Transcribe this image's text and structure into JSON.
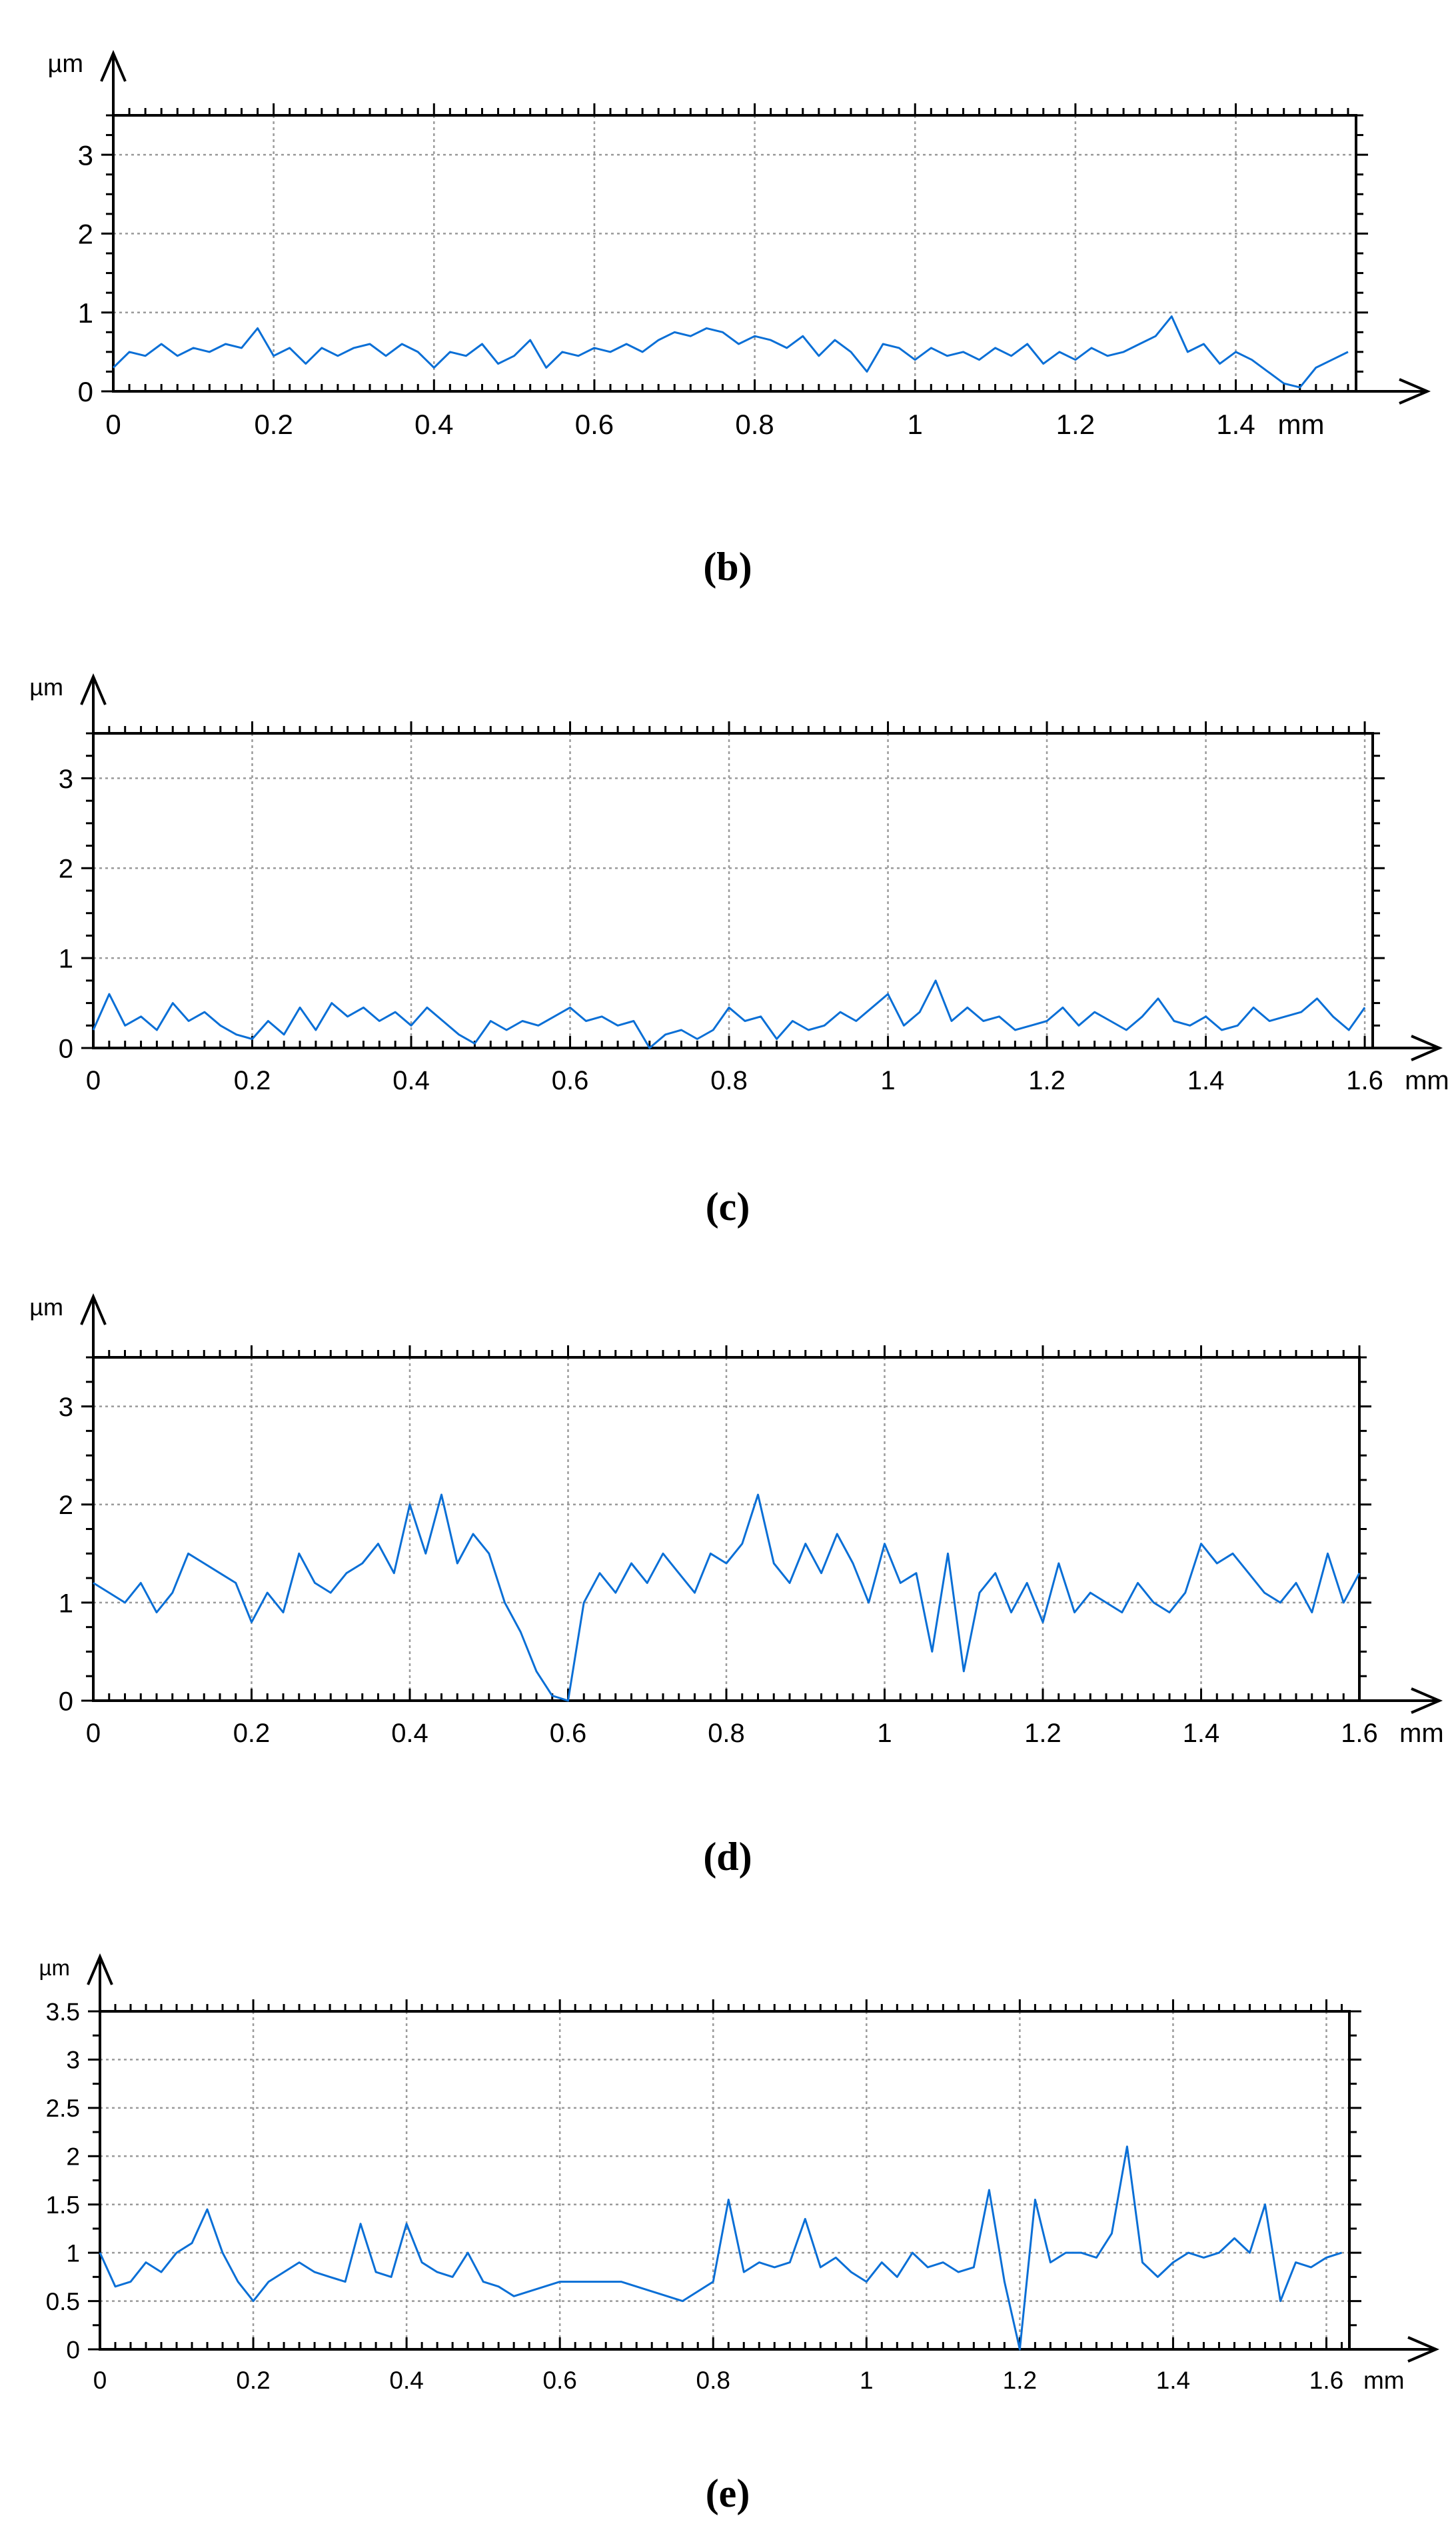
{
  "colors": {
    "line": "#0a6fd6",
    "grid": "#9a9a9a",
    "axis": "#000000"
  },
  "chart_data": [
    {
      "type": "line",
      "caption": "(b)",
      "y_unit": "µm",
      "x_unit": "mm",
      "xlim": [
        0,
        1.55
      ],
      "ylim": [
        0,
        3.5
      ],
      "x_ticks": [
        0,
        0.2,
        0.4,
        0.6,
        0.8,
        1,
        1.2,
        1.4
      ],
      "x_tick_labels": [
        "0",
        "0.2",
        "0.4",
        "0.6",
        "0.8",
        "1",
        "1.2",
        "1.4"
      ],
      "y_ticks": [
        0,
        1,
        2,
        3
      ],
      "y_tick_labels": [
        "0",
        "1",
        "2",
        "3"
      ],
      "grid": true,
      "series": [
        {
          "x": [
            0,
            0.02,
            0.04,
            0.06,
            0.08,
            0.1,
            0.12,
            0.14,
            0.16,
            0.18,
            0.2,
            0.22,
            0.24,
            0.26,
            0.28,
            0.3,
            0.32,
            0.34,
            0.36,
            0.38,
            0.4,
            0.42,
            0.44,
            0.46,
            0.48,
            0.5,
            0.52,
            0.54,
            0.56,
            0.58,
            0.6,
            0.62,
            0.64,
            0.66,
            0.68,
            0.7,
            0.72,
            0.74,
            0.76,
            0.78,
            0.8,
            0.82,
            0.84,
            0.86,
            0.88,
            0.9,
            0.92,
            0.94,
            0.96,
            0.98,
            1.0,
            1.02,
            1.04,
            1.06,
            1.08,
            1.1,
            1.12,
            1.14,
            1.16,
            1.18,
            1.2,
            1.22,
            1.24,
            1.26,
            1.28,
            1.3,
            1.32,
            1.34,
            1.36,
            1.38,
            1.4,
            1.42,
            1.44,
            1.46,
            1.48,
            1.5,
            1.52,
            1.54
          ],
          "y": [
            0.3,
            0.5,
            0.45,
            0.6,
            0.45,
            0.55,
            0.5,
            0.6,
            0.55,
            0.8,
            0.45,
            0.55,
            0.35,
            0.55,
            0.45,
            0.55,
            0.6,
            0.45,
            0.6,
            0.5,
            0.3,
            0.5,
            0.45,
            0.6,
            0.35,
            0.45,
            0.65,
            0.3,
            0.5,
            0.45,
            0.55,
            0.5,
            0.6,
            0.5,
            0.65,
            0.75,
            0.7,
            0.8,
            0.75,
            0.6,
            0.7,
            0.65,
            0.55,
            0.7,
            0.45,
            0.65,
            0.5,
            0.25,
            0.6,
            0.55,
            0.4,
            0.55,
            0.45,
            0.5,
            0.4,
            0.55,
            0.45,
            0.6,
            0.35,
            0.5,
            0.4,
            0.55,
            0.45,
            0.5,
            0.6,
            0.7,
            0.95,
            0.5,
            0.6,
            0.35,
            0.5,
            0.4,
            0.25,
            0.1,
            0.05,
            0.3,
            0.4,
            0.5
          ]
        }
      ]
    },
    {
      "type": "line",
      "caption": "(c)",
      "y_unit": "µm",
      "x_unit": "mm",
      "xlim": [
        0,
        1.61
      ],
      "ylim": [
        0,
        3.5
      ],
      "x_ticks": [
        0,
        0.2,
        0.4,
        0.6,
        0.8,
        1,
        1.2,
        1.4,
        1.6
      ],
      "x_tick_labels": [
        "0",
        "0.2",
        "0.4",
        "0.6",
        "0.8",
        "1",
        "1.2",
        "1.4",
        "1.6"
      ],
      "y_ticks": [
        0,
        1,
        2,
        3
      ],
      "y_tick_labels": [
        "0",
        "1",
        "2",
        "3"
      ],
      "grid": true,
      "series": [
        {
          "x": [
            0,
            0.02,
            0.04,
            0.06,
            0.08,
            0.1,
            0.12,
            0.14,
            0.16,
            0.18,
            0.2,
            0.22,
            0.24,
            0.26,
            0.28,
            0.3,
            0.32,
            0.34,
            0.36,
            0.38,
            0.4,
            0.42,
            0.44,
            0.46,
            0.48,
            0.5,
            0.52,
            0.54,
            0.56,
            0.58,
            0.6,
            0.62,
            0.64,
            0.66,
            0.68,
            0.7,
            0.72,
            0.74,
            0.76,
            0.78,
            0.8,
            0.82,
            0.84,
            0.86,
            0.88,
            0.9,
            0.92,
            0.94,
            0.96,
            0.98,
            1.0,
            1.02,
            1.04,
            1.06,
            1.08,
            1.1,
            1.12,
            1.14,
            1.16,
            1.18,
            1.2,
            1.22,
            1.24,
            1.26,
            1.28,
            1.3,
            1.32,
            1.34,
            1.36,
            1.38,
            1.4,
            1.42,
            1.44,
            1.46,
            1.48,
            1.5,
            1.52,
            1.54,
            1.56,
            1.58,
            1.6
          ],
          "y": [
            0.2,
            0.6,
            0.25,
            0.35,
            0.2,
            0.5,
            0.3,
            0.4,
            0.25,
            0.15,
            0.1,
            0.3,
            0.15,
            0.45,
            0.2,
            0.5,
            0.35,
            0.45,
            0.3,
            0.4,
            0.25,
            0.45,
            0.3,
            0.15,
            0.05,
            0.3,
            0.2,
            0.3,
            0.25,
            0.35,
            0.45,
            0.3,
            0.35,
            0.25,
            0.3,
            0.0,
            0.15,
            0.2,
            0.1,
            0.2,
            0.45,
            0.3,
            0.35,
            0.1,
            0.3,
            0.2,
            0.25,
            0.4,
            0.3,
            0.45,
            0.6,
            0.25,
            0.4,
            0.75,
            0.3,
            0.45,
            0.3,
            0.35,
            0.2,
            0.25,
            0.3,
            0.45,
            0.25,
            0.4,
            0.3,
            0.2,
            0.35,
            0.55,
            0.3,
            0.25,
            0.35,
            0.2,
            0.25,
            0.45,
            0.3,
            0.35,
            0.4,
            0.55,
            0.35,
            0.2,
            0.45
          ]
        }
      ]
    },
    {
      "type": "line",
      "caption": "(d)",
      "y_unit": "µm",
      "x_unit": "mm",
      "xlim": [
        0,
        1.6
      ],
      "ylim": [
        0,
        3.5
      ],
      "x_ticks": [
        0,
        0.2,
        0.4,
        0.6,
        0.8,
        1,
        1.2,
        1.4,
        1.6
      ],
      "x_tick_labels": [
        "0",
        "0.2",
        "0.4",
        "0.6",
        "0.8",
        "1",
        "1.2",
        "1.4",
        "1.6"
      ],
      "y_ticks": [
        0,
        1,
        2,
        3
      ],
      "y_tick_labels": [
        "0",
        "1",
        "2",
        "3"
      ],
      "grid": true,
      "series": [
        {
          "x": [
            0,
            0.02,
            0.04,
            0.06,
            0.08,
            0.1,
            0.12,
            0.14,
            0.16,
            0.18,
            0.2,
            0.22,
            0.24,
            0.26,
            0.28,
            0.3,
            0.32,
            0.34,
            0.36,
            0.38,
            0.4,
            0.42,
            0.44,
            0.46,
            0.48,
            0.5,
            0.52,
            0.54,
            0.56,
            0.58,
            0.6,
            0.62,
            0.64,
            0.66,
            0.68,
            0.7,
            0.72,
            0.74,
            0.76,
            0.78,
            0.8,
            0.82,
            0.84,
            0.86,
            0.88,
            0.9,
            0.92,
            0.94,
            0.96,
            0.98,
            1.0,
            1.02,
            1.04,
            1.06,
            1.08,
            1.1,
            1.12,
            1.14,
            1.16,
            1.18,
            1.2,
            1.22,
            1.24,
            1.26,
            1.28,
            1.3,
            1.32,
            1.34,
            1.36,
            1.38,
            1.4,
            1.42,
            1.44,
            1.46,
            1.48,
            1.5,
            1.52,
            1.54,
            1.56,
            1.58,
            1.6
          ],
          "y": [
            1.2,
            1.1,
            1.0,
            1.2,
            0.9,
            1.1,
            1.5,
            1.4,
            1.3,
            1.2,
            0.8,
            1.1,
            0.9,
            1.5,
            1.2,
            1.1,
            1.3,
            1.4,
            1.6,
            1.3,
            2.0,
            1.5,
            2.1,
            1.4,
            1.7,
            1.5,
            1.0,
            0.7,
            0.3,
            0.05,
            0.0,
            1.0,
            1.3,
            1.1,
            1.4,
            1.2,
            1.5,
            1.3,
            1.1,
            1.5,
            1.4,
            1.6,
            2.1,
            1.4,
            1.2,
            1.6,
            1.3,
            1.7,
            1.4,
            1.0,
            1.6,
            1.2,
            1.3,
            0.5,
            1.5,
            0.3,
            1.1,
            1.3,
            0.9,
            1.2,
            0.8,
            1.4,
            0.9,
            1.1,
            1.0,
            0.9,
            1.2,
            1.0,
            0.9,
            1.1,
            1.6,
            1.4,
            1.5,
            1.3,
            1.1,
            1.0,
            1.2,
            0.9,
            1.5,
            1.0,
            1.3
          ]
        }
      ]
    },
    {
      "type": "line",
      "caption": "(e)",
      "y_unit": "µm",
      "x_unit": "mm",
      "xlim": [
        0,
        1.63
      ],
      "ylim": [
        0,
        3.5
      ],
      "x_ticks": [
        0,
        0.2,
        0.4,
        0.6,
        0.8,
        1,
        1.2,
        1.4,
        1.6
      ],
      "x_tick_labels": [
        "0",
        "0.2",
        "0.4",
        "0.6",
        "0.8",
        "1",
        "1.2",
        "1.4",
        "1.6"
      ],
      "y_ticks": [
        0,
        0.5,
        1,
        1.5,
        2,
        2.5,
        3,
        3.5
      ],
      "y_tick_labels": [
        "0",
        "0.5",
        "1",
        "1.5",
        "2",
        "2.5",
        "3",
        "3.5"
      ],
      "grid": true,
      "series": [
        {
          "x": [
            0,
            0.02,
            0.04,
            0.06,
            0.08,
            0.1,
            0.12,
            0.14,
            0.16,
            0.18,
            0.2,
            0.22,
            0.24,
            0.26,
            0.28,
            0.3,
            0.32,
            0.34,
            0.36,
            0.38,
            0.4,
            0.42,
            0.44,
            0.46,
            0.48,
            0.5,
            0.52,
            0.54,
            0.56,
            0.58,
            0.6,
            0.62,
            0.64,
            0.66,
            0.68,
            0.7,
            0.72,
            0.74,
            0.76,
            0.78,
            0.8,
            0.82,
            0.84,
            0.86,
            0.88,
            0.9,
            0.92,
            0.94,
            0.96,
            0.98,
            1.0,
            1.02,
            1.04,
            1.06,
            1.08,
            1.1,
            1.12,
            1.14,
            1.16,
            1.18,
            1.2,
            1.22,
            1.24,
            1.26,
            1.28,
            1.3,
            1.32,
            1.34,
            1.36,
            1.38,
            1.4,
            1.42,
            1.44,
            1.46,
            1.48,
            1.5,
            1.52,
            1.54,
            1.56,
            1.58,
            1.6,
            1.62
          ],
          "y": [
            1.0,
            0.65,
            0.7,
            0.9,
            0.8,
            1.0,
            1.1,
            1.45,
            1.0,
            0.7,
            0.5,
            0.7,
            0.8,
            0.9,
            0.8,
            0.75,
            0.7,
            1.3,
            0.8,
            0.75,
            1.3,
            0.9,
            0.8,
            0.75,
            1.0,
            0.7,
            0.65,
            0.55,
            0.6,
            0.65,
            0.7,
            0.7,
            0.7,
            0.7,
            0.7,
            0.65,
            0.6,
            0.55,
            0.5,
            0.6,
            0.7,
            1.55,
            0.8,
            0.9,
            0.85,
            0.9,
            1.35,
            0.85,
            0.95,
            0.8,
            0.7,
            0.9,
            0.75,
            1.0,
            0.85,
            0.9,
            0.8,
            0.85,
            1.65,
            0.7,
            0.0,
            1.55,
            0.9,
            1.0,
            1.0,
            0.95,
            1.2,
            2.1,
            0.9,
            0.75,
            0.9,
            1.0,
            0.95,
            1.0,
            1.15,
            1.0,
            1.5,
            0.5,
            0.9,
            0.85,
            0.95,
            1.0
          ]
        }
      ]
    }
  ]
}
